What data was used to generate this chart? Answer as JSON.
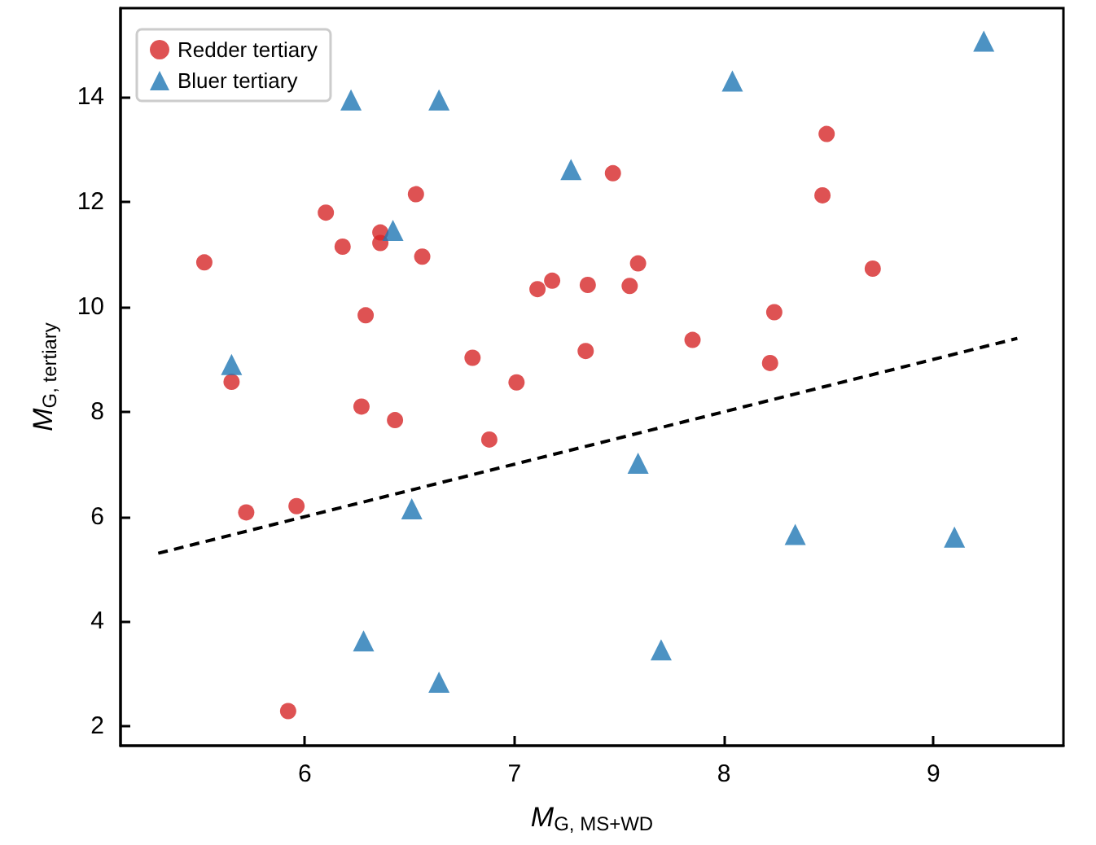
{
  "chart_data": {
    "type": "scatter",
    "xlabel": "M$_{G, MS+WD}$",
    "ylabel": "M$_{G, tertiary}$",
    "xlim": [
      5.12,
      9.62
    ],
    "xticks": [
      6,
      7,
      8,
      9
    ],
    "ylim": [
      1.63,
      15.7
    ],
    "yticks": [
      2,
      4,
      6,
      8,
      10,
      12,
      14
    ],
    "grid": false,
    "legend": "top left",
    "series": [
      {
        "name": "Redder tertiary",
        "color": "#d62728",
        "marker": "circle",
        "x": [
          5.52,
          5.65,
          6.1,
          6.18,
          6.36,
          6.36,
          6.53,
          6.56,
          6.29,
          6.27,
          6.43,
          6.8,
          7.01,
          7.11,
          7.18,
          7.35,
          7.34,
          5.72,
          5.96,
          5.92,
          6.88,
          7.47,
          7.55,
          7.59,
          7.85,
          8.49,
          8.47,
          8.71,
          8.24,
          8.22
        ],
        "values": [
          10.85,
          8.57,
          11.8,
          11.15,
          11.22,
          11.42,
          12.15,
          10.96,
          9.84,
          8.1,
          7.84,
          9.03,
          8.56,
          10.34,
          10.5,
          10.42,
          9.16,
          6.08,
          6.2,
          2.29,
          7.47,
          12.55,
          10.4,
          10.83,
          9.37,
          13.3,
          12.13,
          10.73,
          9.9,
          8.93
        ]
      },
      {
        "name": "Bluer tertiary",
        "color": "#1f77b4",
        "marker": "triangle",
        "x": [
          6.22,
          6.64,
          7.27,
          6.42,
          5.65,
          8.04,
          9.24,
          6.51,
          6.28,
          6.64,
          7.59,
          8.34,
          9.1,
          7.7
        ],
        "values": [
          13.95,
          13.95,
          12.62,
          11.46,
          8.9,
          14.31,
          15.07,
          6.15,
          3.63,
          2.84,
          7.02,
          5.66,
          5.61,
          3.46
        ]
      },
      {
        "type": "line",
        "color": "#000000",
        "marker": "none",
        "line_style": "dashed",
        "x": [
          5.3,
          9.4
        ],
        "values": [
          5.3,
          9.4
        ]
      }
    ]
  }
}
